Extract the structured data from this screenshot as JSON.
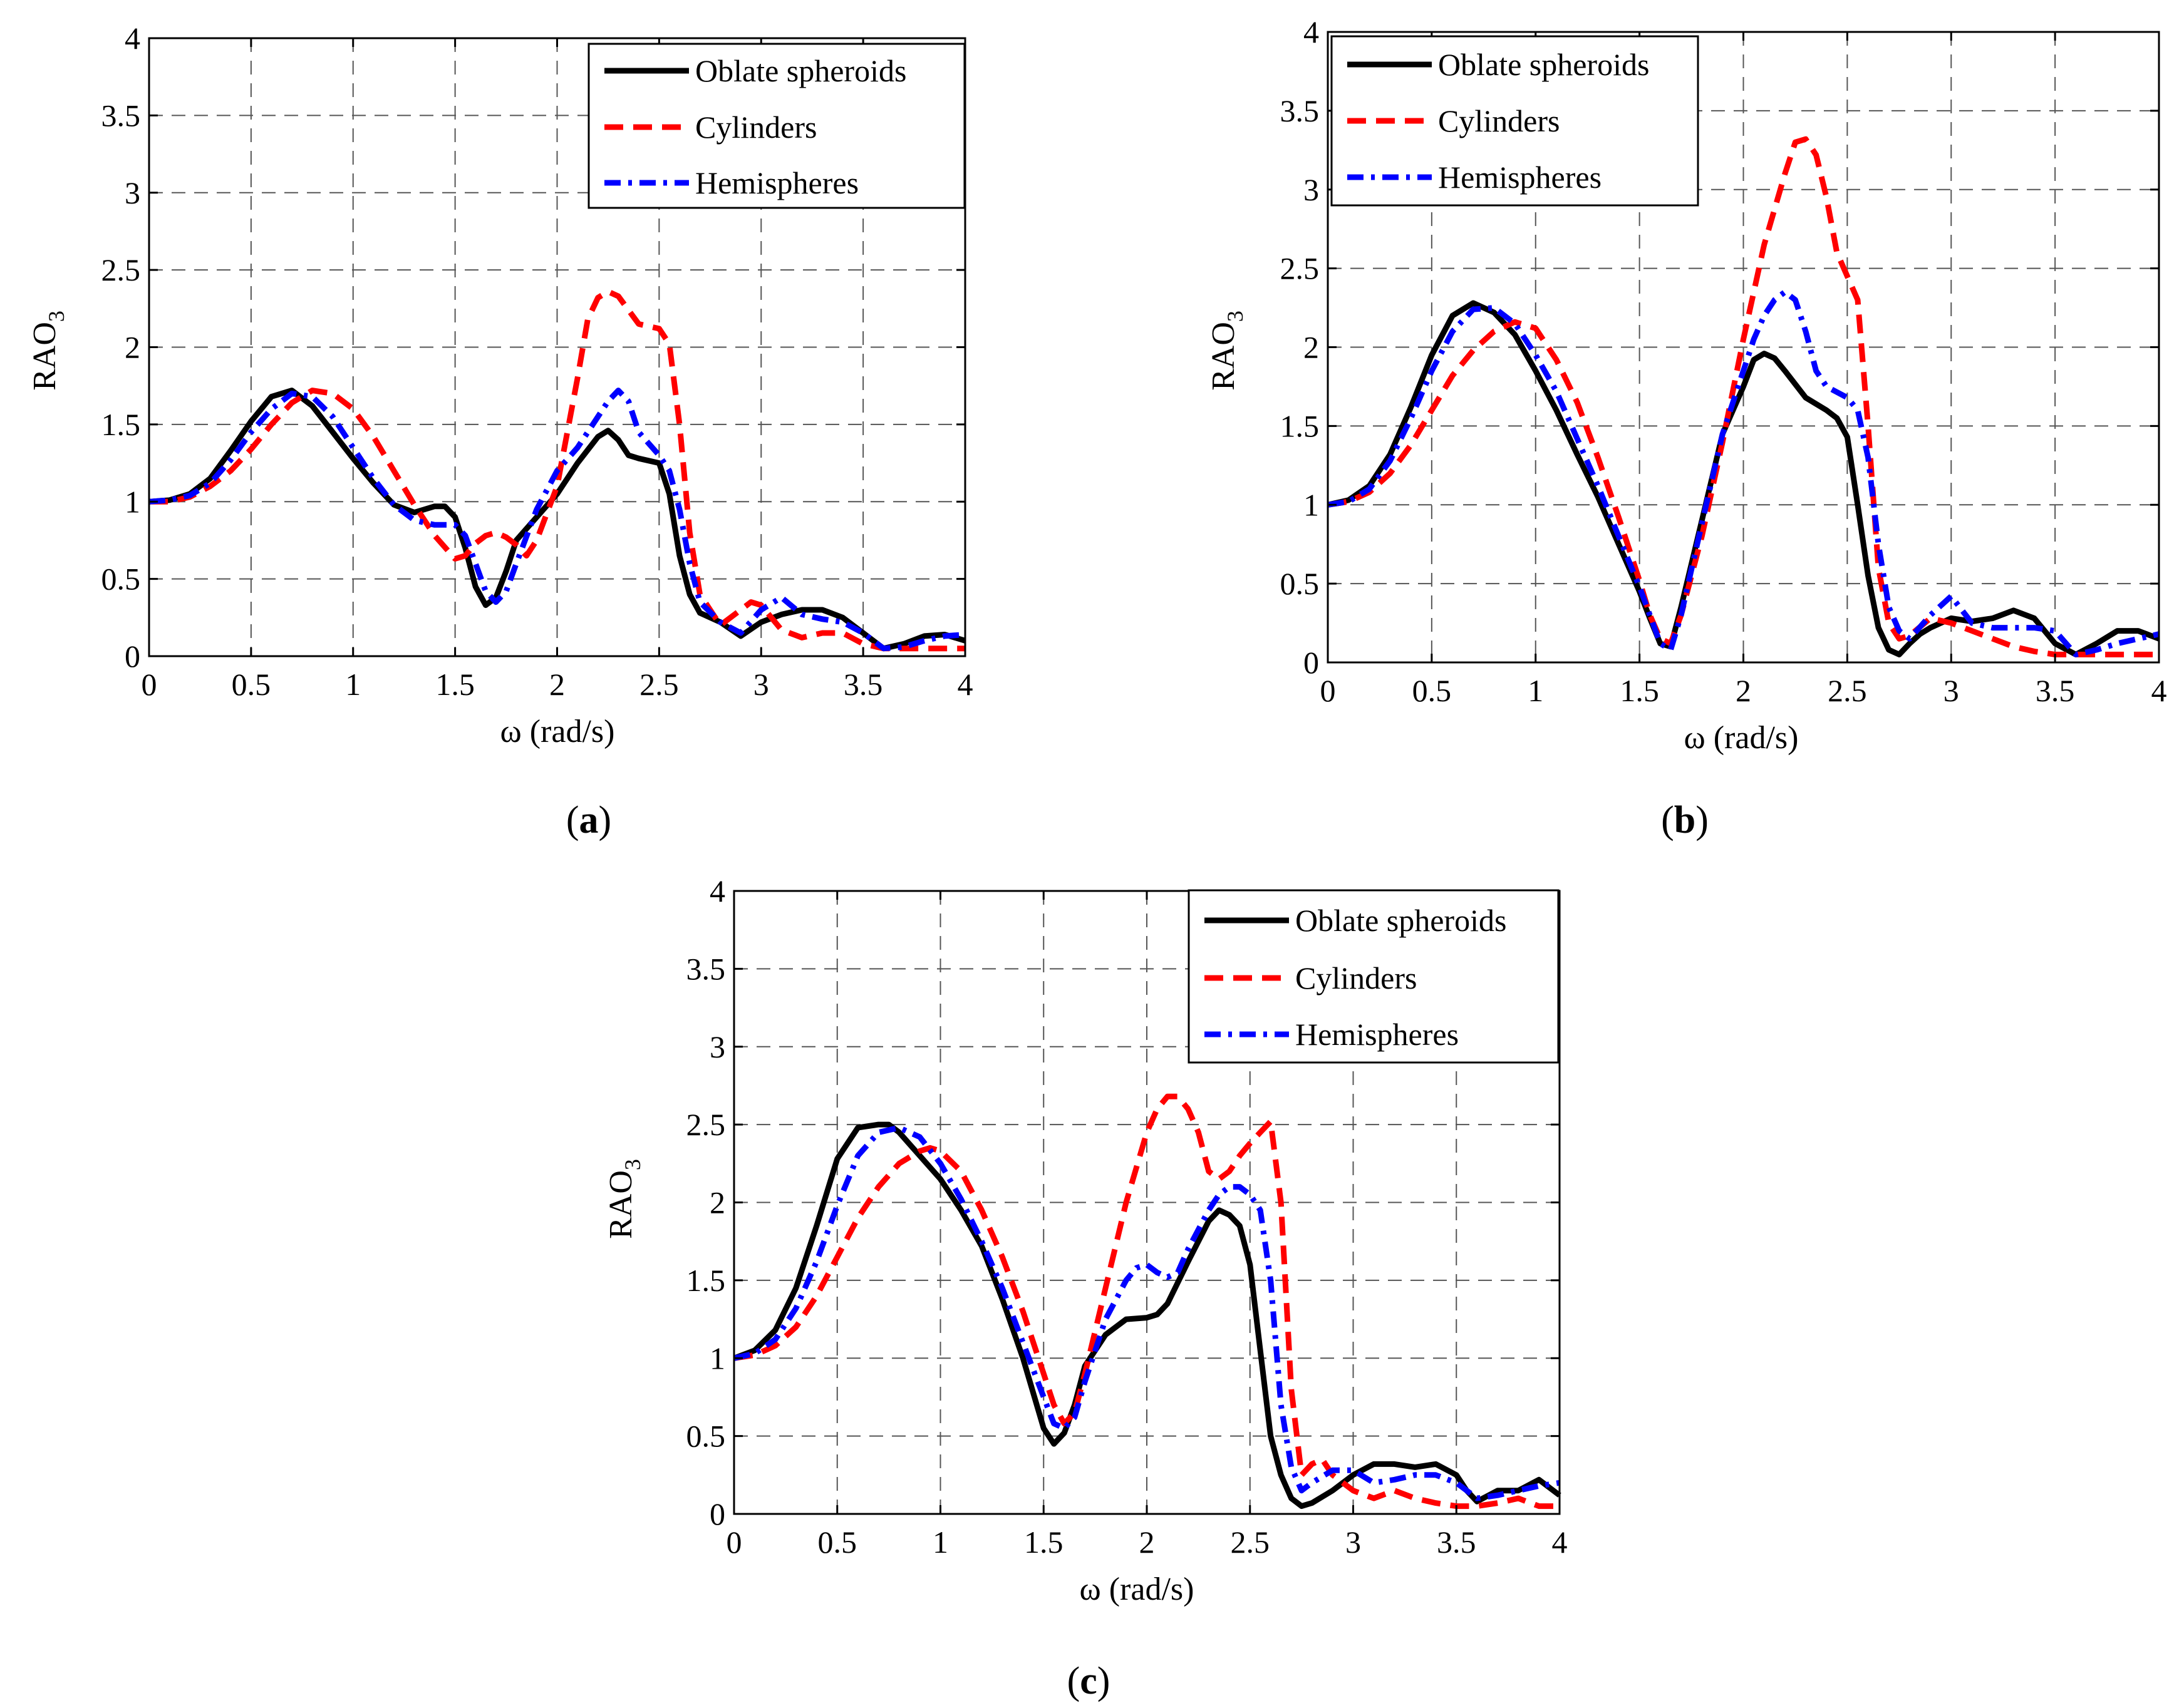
{
  "figure": {
    "x_label": "ω (rad/s)",
    "y_label_main": "RAO",
    "y_label_sub": "3",
    "x_ticks": [
      "0",
      "0.5",
      "1",
      "1.5",
      "2",
      "2.5",
      "3",
      "3.5",
      "4"
    ],
    "y_ticks": [
      "0",
      "0.5",
      "1",
      "1.5",
      "2",
      "2.5",
      "3",
      "3.5",
      "4"
    ],
    "xlim": [
      0,
      4
    ],
    "ylim": [
      0,
      4
    ]
  },
  "series_styles": [
    {
      "name": "Oblate spheroids",
      "color": "#000000",
      "dash": "solid"
    },
    {
      "name": "Cylinders",
      "color": "#ff0000",
      "dash": "dashed"
    },
    {
      "name": "Hemispheres",
      "color": "#0000ff",
      "dash": "dash-dot"
    }
  ],
  "chart_data": [
    {
      "type": "line",
      "panel_label": "a",
      "title": "",
      "xlabel": "ω (rad/s)",
      "ylabel": "RAO3",
      "xlim": [
        0,
        4
      ],
      "ylim": [
        0,
        4
      ],
      "grid": true,
      "legend": [
        "Oblate spheroids",
        "Cylinders",
        "Hemispheres"
      ],
      "legend_position": "top-right",
      "series": [
        {
          "name": "Oblate spheroids",
          "x": [
            0,
            0.1,
            0.2,
            0.3,
            0.4,
            0.5,
            0.6,
            0.7,
            0.8,
            0.9,
            1.0,
            1.1,
            1.2,
            1.3,
            1.4,
            1.45,
            1.5,
            1.55,
            1.6,
            1.65,
            1.7,
            1.75,
            1.8,
            1.9,
            2.0,
            2.1,
            2.2,
            2.25,
            2.3,
            2.35,
            2.4,
            2.5,
            2.55,
            2.6,
            2.65,
            2.7,
            2.8,
            2.9,
            3.0,
            3.1,
            3.2,
            3.3,
            3.4,
            3.5,
            3.6,
            3.7,
            3.8,
            3.9,
            4.0
          ],
          "y": [
            1.0,
            1.01,
            1.05,
            1.15,
            1.33,
            1.52,
            1.68,
            1.72,
            1.62,
            1.45,
            1.28,
            1.12,
            0.98,
            0.93,
            0.97,
            0.97,
            0.9,
            0.7,
            0.45,
            0.33,
            0.38,
            0.55,
            0.75,
            0.9,
            1.05,
            1.25,
            1.42,
            1.46,
            1.4,
            1.3,
            1.28,
            1.25,
            1.05,
            0.65,
            0.4,
            0.28,
            0.22,
            0.13,
            0.22,
            0.27,
            0.3,
            0.3,
            0.25,
            0.15,
            0.05,
            0.08,
            0.13,
            0.14,
            0.1
          ]
        },
        {
          "name": "Cylinders",
          "x": [
            0,
            0.1,
            0.2,
            0.3,
            0.4,
            0.5,
            0.6,
            0.7,
            0.8,
            0.9,
            1.0,
            1.1,
            1.2,
            1.3,
            1.4,
            1.5,
            1.55,
            1.6,
            1.65,
            1.7,
            1.75,
            1.8,
            1.85,
            1.9,
            2.0,
            2.1,
            2.15,
            2.2,
            2.25,
            2.3,
            2.4,
            2.5,
            2.55,
            2.6,
            2.65,
            2.7,
            2.8,
            2.9,
            2.95,
            3.0,
            3.1,
            3.2,
            3.3,
            3.4,
            3.5,
            3.6,
            3.7,
            3.8,
            3.9,
            4.0
          ],
          "y": [
            1.0,
            1.0,
            1.03,
            1.1,
            1.2,
            1.34,
            1.5,
            1.64,
            1.72,
            1.7,
            1.6,
            1.42,
            1.2,
            0.98,
            0.78,
            0.63,
            0.65,
            0.73,
            0.78,
            0.8,
            0.77,
            0.72,
            0.65,
            0.75,
            1.1,
            1.8,
            2.18,
            2.32,
            2.36,
            2.33,
            2.15,
            2.12,
            2.02,
            1.5,
            0.8,
            0.4,
            0.2,
            0.3,
            0.35,
            0.33,
            0.17,
            0.12,
            0.15,
            0.15,
            0.08,
            0.05,
            0.05,
            0.05,
            0.05,
            0.05
          ]
        },
        {
          "name": "Hemispheres",
          "x": [
            0,
            0.1,
            0.2,
            0.3,
            0.4,
            0.5,
            0.6,
            0.7,
            0.8,
            0.9,
            1.0,
            1.1,
            1.2,
            1.3,
            1.4,
            1.5,
            1.55,
            1.6,
            1.65,
            1.7,
            1.75,
            1.8,
            1.9,
            2.0,
            2.1,
            2.2,
            2.25,
            2.3,
            2.35,
            2.4,
            2.5,
            2.55,
            2.6,
            2.65,
            2.7,
            2.8,
            2.9,
            3.0,
            3.1,
            3.2,
            3.3,
            3.4,
            3.5,
            3.6,
            3.7,
            3.8,
            3.9,
            4.0
          ],
          "y": [
            1.0,
            1.01,
            1.04,
            1.12,
            1.27,
            1.45,
            1.6,
            1.7,
            1.68,
            1.55,
            1.35,
            1.15,
            0.98,
            0.88,
            0.85,
            0.85,
            0.78,
            0.6,
            0.42,
            0.35,
            0.42,
            0.6,
            0.95,
            1.2,
            1.35,
            1.55,
            1.65,
            1.72,
            1.65,
            1.45,
            1.3,
            1.2,
            0.95,
            0.6,
            0.35,
            0.22,
            0.15,
            0.3,
            0.38,
            0.27,
            0.24,
            0.22,
            0.15,
            0.05,
            0.06,
            0.1,
            0.13,
            0.14
          ]
        }
      ]
    },
    {
      "type": "line",
      "panel_label": "b",
      "title": "",
      "xlabel": "ω (rad/s)",
      "ylabel": "RAO3",
      "xlim": [
        0,
        4
      ],
      "ylim": [
        0,
        4
      ],
      "grid": true,
      "legend": [
        "Oblate spheroids",
        "Cylinders",
        "Hemispheres"
      ],
      "legend_position": "top-right",
      "series": [
        {
          "name": "Oblate spheroids",
          "x": [
            0,
            0.1,
            0.2,
            0.3,
            0.4,
            0.5,
            0.6,
            0.7,
            0.8,
            0.9,
            1.0,
            1.1,
            1.2,
            1.3,
            1.4,
            1.5,
            1.55,
            1.6,
            1.65,
            1.7,
            1.8,
            1.9,
            2.0,
            2.05,
            2.1,
            2.15,
            2.2,
            2.3,
            2.4,
            2.45,
            2.5,
            2.55,
            2.6,
            2.65,
            2.7,
            2.75,
            2.8,
            2.85,
            2.9,
            3.0,
            3.1,
            3.2,
            3.3,
            3.4,
            3.5,
            3.6,
            3.7,
            3.8,
            3.9,
            4.0
          ],
          "y": [
            1.0,
            1.03,
            1.12,
            1.32,
            1.62,
            1.95,
            2.2,
            2.28,
            2.22,
            2.08,
            1.85,
            1.6,
            1.32,
            1.05,
            0.75,
            0.45,
            0.28,
            0.12,
            0.1,
            0.35,
            0.9,
            1.45,
            1.75,
            1.92,
            1.96,
            1.93,
            1.85,
            1.68,
            1.6,
            1.55,
            1.43,
            1.0,
            0.55,
            0.22,
            0.08,
            0.05,
            0.12,
            0.18,
            0.22,
            0.28,
            0.26,
            0.28,
            0.33,
            0.28,
            0.12,
            0.05,
            0.12,
            0.2,
            0.2,
            0.15
          ]
        },
        {
          "name": "Cylinders",
          "x": [
            0,
            0.1,
            0.2,
            0.3,
            0.4,
            0.5,
            0.6,
            0.7,
            0.8,
            0.9,
            1.0,
            1.1,
            1.2,
            1.3,
            1.4,
            1.5,
            1.55,
            1.6,
            1.65,
            1.7,
            1.8,
            1.9,
            2.0,
            2.1,
            2.2,
            2.25,
            2.3,
            2.35,
            2.4,
            2.45,
            2.5,
            2.55,
            2.6,
            2.65,
            2.7,
            2.75,
            2.8,
            2.9,
            3.0,
            3.1,
            3.2,
            3.3,
            3.4,
            3.5,
            3.6,
            3.7,
            3.8,
            3.9,
            4.0
          ],
          "y": [
            1.0,
            1.02,
            1.08,
            1.2,
            1.38,
            1.6,
            1.82,
            1.98,
            2.1,
            2.16,
            2.12,
            1.92,
            1.65,
            1.3,
            0.92,
            0.52,
            0.3,
            0.15,
            0.12,
            0.3,
            0.8,
            1.4,
            2.05,
            2.65,
            3.1,
            3.3,
            3.32,
            3.22,
            2.95,
            2.6,
            2.45,
            2.3,
            1.5,
            0.6,
            0.25,
            0.15,
            0.17,
            0.28,
            0.25,
            0.2,
            0.15,
            0.1,
            0.07,
            0.05,
            0.05,
            0.05,
            0.05,
            0.05,
            0.05
          ]
        },
        {
          "name": "Hemispheres",
          "x": [
            0,
            0.1,
            0.2,
            0.3,
            0.4,
            0.5,
            0.6,
            0.7,
            0.8,
            0.9,
            1.0,
            1.1,
            1.2,
            1.3,
            1.4,
            1.5,
            1.55,
            1.6,
            1.65,
            1.7,
            1.8,
            1.9,
            2.0,
            2.05,
            2.1,
            2.15,
            2.2,
            2.25,
            2.3,
            2.35,
            2.4,
            2.5,
            2.55,
            2.6,
            2.65,
            2.7,
            2.75,
            2.8,
            2.9,
            3.0,
            3.1,
            3.2,
            3.3,
            3.4,
            3.5,
            3.6,
            3.7,
            3.8,
            3.9,
            4.0
          ],
          "y": [
            1.0,
            1.02,
            1.1,
            1.28,
            1.55,
            1.85,
            2.1,
            2.24,
            2.25,
            2.15,
            1.95,
            1.72,
            1.42,
            1.12,
            0.8,
            0.48,
            0.3,
            0.12,
            0.08,
            0.3,
            0.88,
            1.45,
            1.85,
            2.05,
            2.2,
            2.3,
            2.35,
            2.3,
            2.1,
            1.85,
            1.75,
            1.68,
            1.6,
            1.3,
            0.75,
            0.35,
            0.2,
            0.15,
            0.3,
            0.42,
            0.25,
            0.22,
            0.22,
            0.22,
            0.2,
            0.05,
            0.08,
            0.12,
            0.15,
            0.18
          ]
        }
      ]
    },
    {
      "type": "line",
      "panel_label": "c",
      "title": "",
      "xlabel": "ω (rad/s)",
      "ylabel": "RAO3",
      "xlim": [
        0,
        4
      ],
      "ylim": [
        0,
        4
      ],
      "grid": true,
      "legend": [
        "Oblate spheroids",
        "Cylinders",
        "Hemispheres"
      ],
      "legend_position": "top-right",
      "series": [
        {
          "name": "Oblate spheroids",
          "x": [
            0,
            0.1,
            0.2,
            0.3,
            0.4,
            0.5,
            0.6,
            0.7,
            0.75,
            0.8,
            0.9,
            1.0,
            1.1,
            1.2,
            1.3,
            1.4,
            1.5,
            1.55,
            1.6,
            1.65,
            1.7,
            1.8,
            1.9,
            2.0,
            2.05,
            2.1,
            2.2,
            2.3,
            2.35,
            2.4,
            2.45,
            2.5,
            2.55,
            2.6,
            2.65,
            2.7,
            2.75,
            2.8,
            2.9,
            3.0,
            3.1,
            3.2,
            3.3,
            3.4,
            3.5,
            3.55,
            3.6,
            3.7,
            3.8,
            3.9,
            4.0
          ],
          "y": [
            1.0,
            1.05,
            1.18,
            1.45,
            1.85,
            2.28,
            2.48,
            2.5,
            2.5,
            2.45,
            2.3,
            2.15,
            1.95,
            1.72,
            1.38,
            1.0,
            0.55,
            0.45,
            0.52,
            0.7,
            0.95,
            1.15,
            1.25,
            1.26,
            1.28,
            1.35,
            1.62,
            1.88,
            1.95,
            1.92,
            1.85,
            1.6,
            1.05,
            0.5,
            0.25,
            0.1,
            0.05,
            0.07,
            0.15,
            0.25,
            0.32,
            0.32,
            0.3,
            0.32,
            0.25,
            0.15,
            0.08,
            0.15,
            0.15,
            0.22,
            0.12
          ]
        },
        {
          "name": "Cylinders",
          "x": [
            0,
            0.1,
            0.2,
            0.3,
            0.4,
            0.5,
            0.6,
            0.7,
            0.8,
            0.9,
            0.95,
            1.0,
            1.1,
            1.2,
            1.3,
            1.4,
            1.5,
            1.55,
            1.6,
            1.65,
            1.7,
            1.8,
            1.9,
            2.0,
            2.05,
            2.1,
            2.15,
            2.2,
            2.25,
            2.3,
            2.35,
            2.4,
            2.45,
            2.5,
            2.55,
            2.6,
            2.65,
            2.7,
            2.75,
            2.8,
            2.85,
            2.9,
            3.0,
            3.1,
            3.2,
            3.3,
            3.4,
            3.5,
            3.6,
            3.7,
            3.8,
            3.9,
            4.0
          ],
          "y": [
            1.0,
            1.02,
            1.08,
            1.2,
            1.4,
            1.65,
            1.9,
            2.1,
            2.25,
            2.33,
            2.35,
            2.33,
            2.2,
            1.95,
            1.65,
            1.3,
            0.9,
            0.7,
            0.58,
            0.65,
            0.9,
            1.45,
            2.0,
            2.45,
            2.6,
            2.68,
            2.68,
            2.6,
            2.45,
            2.2,
            2.15,
            2.2,
            2.3,
            2.38,
            2.45,
            2.52,
            2.0,
            0.8,
            0.25,
            0.32,
            0.35,
            0.25,
            0.15,
            0.1,
            0.15,
            0.1,
            0.07,
            0.05,
            0.05,
            0.07,
            0.1,
            0.05,
            0.05
          ]
        },
        {
          "name": "Hemispheres",
          "x": [
            0,
            0.1,
            0.2,
            0.3,
            0.4,
            0.5,
            0.6,
            0.7,
            0.8,
            0.9,
            1.0,
            1.1,
            1.2,
            1.3,
            1.4,
            1.5,
            1.55,
            1.6,
            1.65,
            1.7,
            1.8,
            1.9,
            1.95,
            2.0,
            2.05,
            2.1,
            2.15,
            2.2,
            2.3,
            2.35,
            2.4,
            2.45,
            2.5,
            2.55,
            2.6,
            2.65,
            2.7,
            2.75,
            2.8,
            2.9,
            3.0,
            3.1,
            3.2,
            3.3,
            3.4,
            3.5,
            3.6,
            3.7,
            3.8,
            3.9,
            4.0
          ],
          "y": [
            1.0,
            1.03,
            1.12,
            1.32,
            1.62,
            1.98,
            2.3,
            2.45,
            2.48,
            2.42,
            2.25,
            2.02,
            1.75,
            1.45,
            1.1,
            0.75,
            0.58,
            0.55,
            0.62,
            0.85,
            1.25,
            1.5,
            1.58,
            1.6,
            1.55,
            1.52,
            1.55,
            1.7,
            1.95,
            2.05,
            2.1,
            2.1,
            2.05,
            1.95,
            1.5,
            0.7,
            0.3,
            0.15,
            0.2,
            0.28,
            0.28,
            0.2,
            0.22,
            0.25,
            0.25,
            0.2,
            0.1,
            0.12,
            0.15,
            0.18,
            0.2
          ]
        }
      ]
    }
  ]
}
